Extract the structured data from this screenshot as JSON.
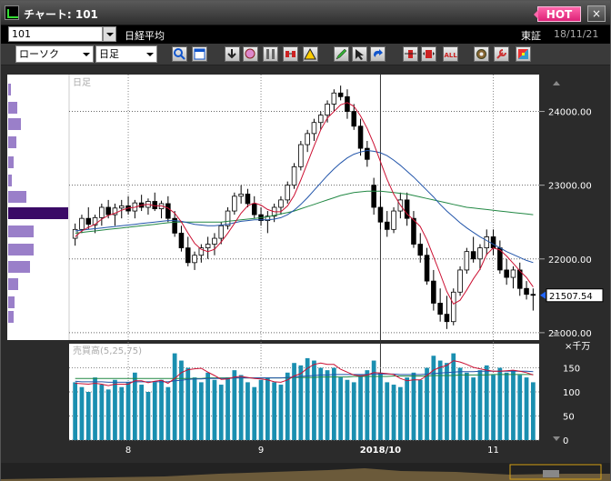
{
  "window": {
    "title": "チャート: 101",
    "hot_label": "HOT",
    "close_label": "×"
  },
  "row1": {
    "code": "101",
    "name": "日経平均",
    "market": "東証",
    "date": "18/11/21"
  },
  "toolbar": {
    "chart_type": "ローソク",
    "period": "日足",
    "tools": [
      "zoom-icon",
      "window-icon",
      "download-icon",
      "find-icon",
      "column-icon",
      "compare-icon",
      "alert-icon",
      "pen-icon",
      "cursor-icon",
      "refresh-icon",
      "fit-icon",
      "expand-icon",
      "all-button",
      "settings-icon",
      "wrench-icon",
      "palette-icon"
    ],
    "all_label": "ALL"
  },
  "price_chart": {
    "period_label": "日足",
    "price_ticks": [
      "24000.00",
      "23000.00",
      "22000.00",
      "21000.00"
    ],
    "current_price": "21507.54",
    "up_color": "#ffffff",
    "down_color": "#000000",
    "ma_short_color": "#cc1133",
    "ma_mid_color": "#2255aa",
    "ma_long_color": "#228844"
  },
  "volume_chart": {
    "title": "売買高(5,25,75)",
    "unit": "×千万",
    "ticks": [
      "150",
      "100",
      "50",
      "0"
    ],
    "bar_color": "#1a8fb0"
  },
  "x_labels": [
    {
      "label": "8",
      "bold": false
    },
    {
      "label": "9",
      "bold": false
    },
    {
      "label": "2018/10",
      "bold": true
    },
    {
      "label": "11",
      "bold": false
    }
  ],
  "chart_data": {
    "type": "candlestick",
    "ylim": [
      20900,
      24500
    ],
    "candles": [
      [
        22280,
        22480,
        22180,
        22400
      ],
      [
        22400,
        22600,
        22350,
        22550
      ],
      [
        22550,
        22700,
        22400,
        22470
      ],
      [
        22460,
        22600,
        22350,
        22560
      ],
      [
        22560,
        22750,
        22450,
        22700
      ],
      [
        22700,
        22800,
        22550,
        22600
      ],
      [
        22600,
        22750,
        22450,
        22690
      ],
      [
        22690,
        22800,
        22550,
        22720
      ],
      [
        22720,
        22850,
        22600,
        22650
      ],
      [
        22650,
        22800,
        22550,
        22760
      ],
      [
        22760,
        22870,
        22650,
        22700
      ],
      [
        22700,
        22820,
        22600,
        22780
      ],
      [
        22780,
        22900,
        22650,
        22680
      ],
      [
        22680,
        22790,
        22550,
        22750
      ],
      [
        22750,
        22850,
        22500,
        22550
      ],
      [
        22550,
        22650,
        22300,
        22350
      ],
      [
        22350,
        22450,
        22100,
        22150
      ],
      [
        22150,
        22300,
        21900,
        21950
      ],
      [
        21950,
        22100,
        21850,
        22050
      ],
      [
        22050,
        22200,
        21950,
        22150
      ],
      [
        22150,
        22300,
        22000,
        22200
      ],
      [
        22200,
        22350,
        22050,
        22280
      ],
      [
        22280,
        22500,
        22200,
        22450
      ],
      [
        22450,
        22700,
        22400,
        22650
      ],
      [
        22650,
        22900,
        22600,
        22850
      ],
      [
        22850,
        23000,
        22750,
        22880
      ],
      [
        22880,
        22950,
        22700,
        22750
      ],
      [
        22750,
        22850,
        22550,
        22600
      ],
      [
        22600,
        22700,
        22450,
        22520
      ],
      [
        22520,
        22650,
        22350,
        22580
      ],
      [
        22580,
        22750,
        22500,
        22700
      ],
      [
        22700,
        22850,
        22600,
        22800
      ],
      [
        22800,
        23050,
        22750,
        23000
      ],
      [
        23000,
        23300,
        22950,
        23250
      ],
      [
        23250,
        23600,
        23200,
        23550
      ],
      [
        23550,
        23750,
        23450,
        23700
      ],
      [
        23700,
        23900,
        23600,
        23850
      ],
      [
        23850,
        24000,
        23750,
        23950
      ],
      [
        23950,
        24150,
        23850,
        24100
      ],
      [
        24100,
        24300,
        24000,
        24250
      ],
      [
        24250,
        24350,
        24150,
        24200
      ],
      [
        24200,
        24300,
        23900,
        24000
      ],
      [
        24000,
        24100,
        23750,
        23800
      ],
      [
        23800,
        23900,
        23400,
        23500
      ],
      [
        23500,
        23600,
        23250,
        23350
      ],
      [
        23000,
        23100,
        22600,
        22700
      ],
      [
        22700,
        22850,
        22400,
        22500
      ],
      [
        22500,
        22650,
        22300,
        22400
      ],
      [
        22400,
        22700,
        22350,
        22650
      ],
      [
        22650,
        22900,
        22550,
        22800
      ],
      [
        22800,
        22900,
        22450,
        22550
      ],
      [
        22550,
        22650,
        22150,
        22200
      ],
      [
        22200,
        22350,
        21950,
        22050
      ],
      [
        22050,
        22150,
        21650,
        21700
      ],
      [
        21700,
        21850,
        21300,
        21400
      ],
      [
        21400,
        21600,
        21150,
        21250
      ],
      [
        21250,
        21500,
        21050,
        21150
      ],
      [
        21150,
        21600,
        21100,
        21550
      ],
      [
        21550,
        21900,
        21500,
        21850
      ],
      [
        21850,
        22150,
        21800,
        22100
      ],
      [
        22100,
        22300,
        21950,
        22000
      ],
      [
        22000,
        22200,
        21850,
        22150
      ],
      [
        22150,
        22400,
        22050,
        22300
      ],
      [
        22300,
        22400,
        22050,
        22150
      ],
      [
        22150,
        22250,
        21800,
        21850
      ],
      [
        21850,
        22000,
        21650,
        21750
      ],
      [
        21750,
        21900,
        21600,
        21850
      ],
      [
        21850,
        21950,
        21500,
        21600
      ],
      [
        21600,
        21700,
        21450,
        21520
      ],
      [
        21520,
        21600,
        21300,
        21507
      ]
    ],
    "ma5": [
      22300,
      22380,
      22430,
      22470,
      22540,
      22590,
      22620,
      22660,
      22690,
      22700,
      22730,
      22740,
      22720,
      22720,
      22690,
      22620,
      22500,
      22350,
      22210,
      22130,
      22100,
      22130,
      22230,
      22350,
      22480,
      22620,
      22720,
      22760,
      22730,
      22670,
      22640,
      22640,
      22720,
      22860,
      23070,
      23300,
      23530,
      23750,
      23910,
      24000,
      24090,
      24120,
      24070,
      23940,
      23770,
      23560,
      23320,
      23080,
      22880,
      22730,
      22610,
      22530,
      22440,
      22260,
      22030,
      21800,
      21560,
      21390,
      21440,
      21580,
      21730,
      21860,
      22060,
      22150,
      22120,
      22040,
      21940,
      21840,
      21750,
      21620
    ],
    "ma25": [
      22380,
      22390,
      22400,
      22410,
      22420,
      22430,
      22440,
      22450,
      22460,
      22470,
      22480,
      22490,
      22500,
      22510,
      22520,
      22520,
      22510,
      22490,
      22470,
      22460,
      22450,
      22450,
      22460,
      22470,
      22490,
      22510,
      22520,
      22530,
      22530,
      22530,
      22540,
      22560,
      22600,
      22660,
      22740,
      22830,
      22930,
      23030,
      23130,
      23220,
      23300,
      23370,
      23420,
      23450,
      23470,
      23460,
      23440,
      23400,
      23340,
      23270,
      23190,
      23110,
      23020,
      22930,
      22840,
      22740,
      22650,
      22570,
      22490,
      22420,
      22360,
      22300,
      22250,
      22200,
      22150,
      22100,
      22060,
      22020,
      21980,
      21950
    ],
    "ma75": [
      22350,
      22360,
      22370,
      22380,
      22390,
      22400,
      22410,
      22420,
      22430,
      22440,
      22450,
      22460,
      22470,
      22480,
      22490,
      22500,
      22500,
      22500,
      22500,
      22500,
      22500,
      22500,
      22500,
      22510,
      22520,
      22530,
      22540,
      22550,
      22560,
      22570,
      22590,
      22610,
      22630,
      22650,
      22680,
      22710,
      22740,
      22770,
      22800,
      22830,
      22860,
      22880,
      22900,
      22910,
      22920,
      22920,
      22920,
      22910,
      22900,
      22890,
      22880,
      22860,
      22840,
      22820,
      22800,
      22780,
      22760,
      22740,
      22720,
      22700,
      22690,
      22680,
      22670,
      22660,
      22650,
      22640,
      22630,
      22620,
      22610,
      22600
    ],
    "volume": [
      120,
      110,
      100,
      130,
      115,
      105,
      125,
      110,
      120,
      140,
      115,
      100,
      120,
      125,
      110,
      180,
      165,
      150,
      130,
      120,
      140,
      125,
      115,
      130,
      145,
      135,
      120,
      110,
      125,
      130,
      120,
      115,
      140,
      160,
      155,
      170,
      165,
      150,
      145,
      150,
      130,
      125,
      120,
      135,
      145,
      165,
      140,
      120,
      115,
      110,
      130,
      140,
      125,
      150,
      175,
      165,
      160,
      180,
      150,
      140,
      130,
      145,
      155,
      135,
      150,
      140,
      145,
      135,
      130,
      120
    ],
    "vol_ma5": [
      118,
      117,
      116,
      118,
      116,
      113,
      116,
      116,
      116,
      123,
      123,
      119,
      122,
      124,
      118,
      128,
      140,
      146,
      148,
      149,
      141,
      134,
      126,
      127,
      131,
      132,
      130,
      128,
      127,
      125,
      121,
      120,
      125,
      133,
      138,
      149,
      157,
      160,
      157,
      157,
      147,
      141,
      135,
      133,
      135,
      140,
      139,
      138,
      136,
      128,
      123,
      125,
      125,
      134,
      145,
      151,
      155,
      165,
      162,
      157,
      151,
      148,
      145,
      143,
      143,
      144,
      145,
      143,
      140,
      135
    ],
    "vol_ma25": [
      122,
      121,
      121,
      121,
      121,
      120,
      120,
      120,
      120,
      121,
      121,
      121,
      121,
      121,
      121,
      123,
      124,
      126,
      127,
      127,
      128,
      128,
      128,
      128,
      129,
      129,
      129,
      129,
      129,
      129,
      129,
      129,
      130,
      131,
      132,
      133,
      134,
      135,
      135,
      136,
      136,
      136,
      136,
      136,
      136,
      137,
      137,
      137,
      137,
      136,
      136,
      136,
      136,
      137,
      138,
      139,
      140,
      141,
      142,
      142,
      142,
      143,
      143,
      143,
      143,
      143,
      143,
      143,
      143,
      142
    ],
    "vol_ma75": [
      128,
      128,
      128,
      128,
      128,
      128,
      128,
      128,
      128,
      128,
      128,
      128,
      128,
      128,
      128,
      128,
      128,
      128,
      128,
      128,
      129,
      129,
      129,
      129,
      129,
      129,
      129,
      129,
      129,
      129,
      129,
      129,
      129,
      130,
      130,
      130,
      130,
      131,
      131,
      131,
      131,
      131,
      132,
      132,
      132,
      132,
      132,
      132,
      133,
      133,
      133,
      133,
      133,
      133,
      134,
      134,
      134,
      134,
      135,
      135,
      135,
      135,
      135,
      136,
      136,
      136,
      136,
      136,
      136,
      136
    ]
  }
}
